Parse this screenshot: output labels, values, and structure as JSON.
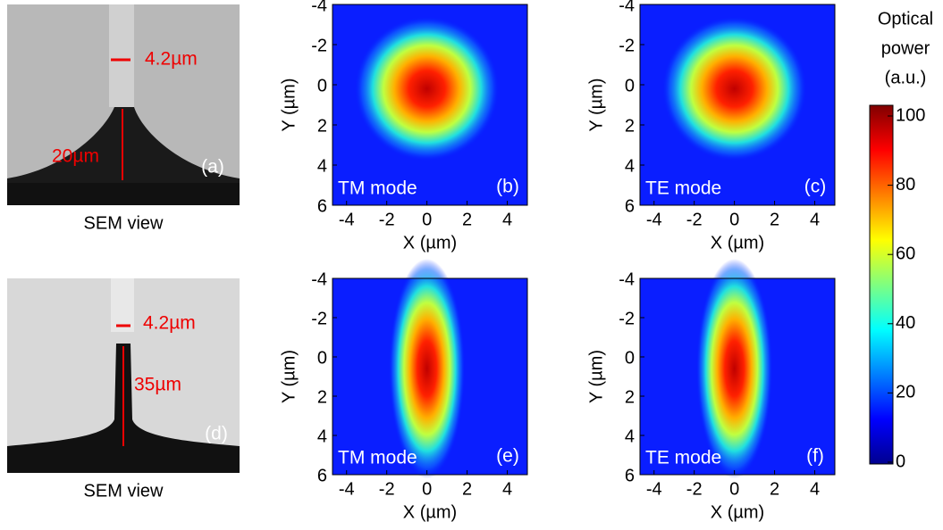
{
  "sem_panels": [
    {
      "width_label": "4.2µm",
      "height_label": "20µm",
      "panel": "(a)",
      "caption": "SEM view"
    },
    {
      "width_label": "4.2µm",
      "height_label": "35µm",
      "panel": "(d)",
      "caption": "SEM view"
    }
  ],
  "mode_panels": [
    {
      "mode": "TM mode",
      "panel": "(b)"
    },
    {
      "mode": "TE mode",
      "panel": "(c)"
    },
    {
      "mode": "TM mode",
      "panel": "(e)"
    },
    {
      "mode": "TE mode",
      "panel": "(f)"
    }
  ],
  "x_label": "X (µm)",
  "y_label": "Y (µm)",
  "xlim": [
    -4.7,
    5
  ],
  "ylim": [
    -4,
    6
  ],
  "xticks": [
    -4,
    -2,
    0,
    2,
    4
  ],
  "yticks": [
    -4,
    -2,
    0,
    2,
    4,
    6
  ],
  "colorbar": {
    "title": [
      "Optical",
      "power",
      "(a.u.)"
    ],
    "lim": [
      0,
      100
    ],
    "ticks": [
      0,
      20,
      40,
      60,
      80,
      100
    ]
  }
}
